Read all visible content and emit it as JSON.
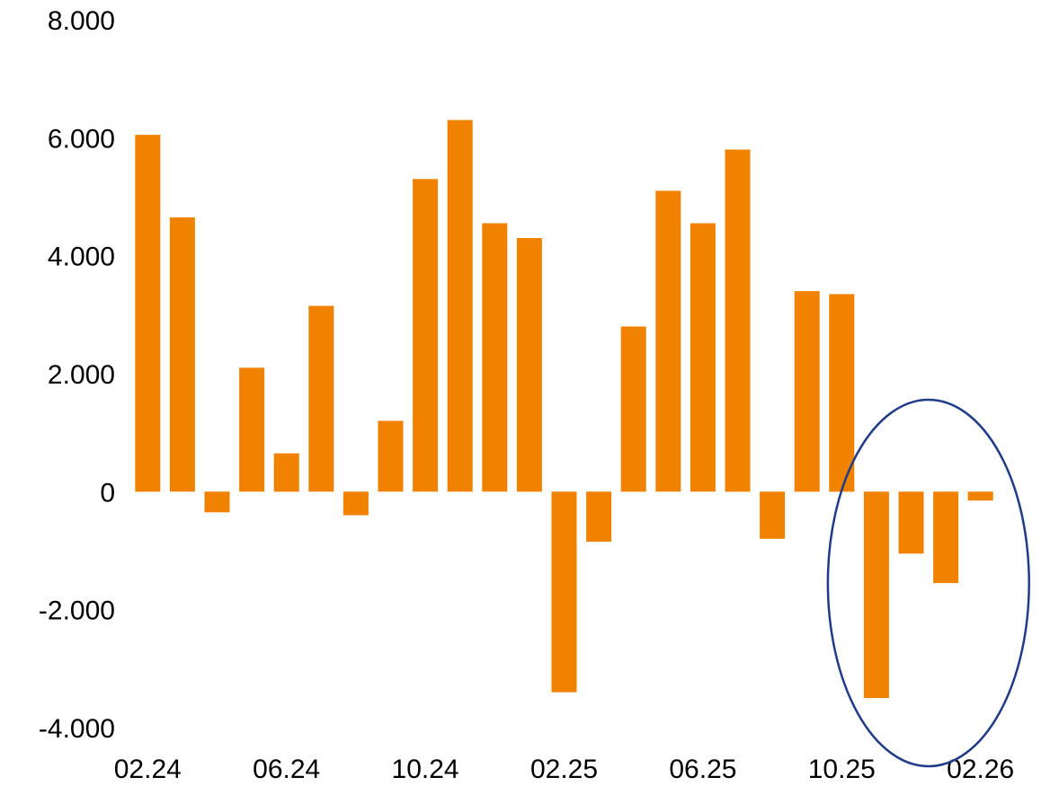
{
  "chart_data": {
    "type": "bar",
    "x": [
      "02.24",
      "03.24",
      "04.24",
      "05.24",
      "06.24",
      "07.24",
      "08.24",
      "09.24",
      "10.24",
      "11.24",
      "12.24",
      "01.25",
      "02.25",
      "03.25",
      "04.25",
      "05.25",
      "06.25",
      "07.25",
      "08.25",
      "09.25",
      "10.25",
      "11.25",
      "12.25",
      "01.26",
      "02.26"
    ],
    "values": [
      6050,
      4650,
      -350,
      2100,
      650,
      3150,
      -400,
      1200,
      5300,
      6300,
      4550,
      4300,
      -3400,
      -850,
      2800,
      5100,
      4550,
      5800,
      -800,
      3400,
      3350,
      -3500,
      -1050,
      -1550,
      -150
    ],
    "xticks": [
      "02.24",
      "06.24",
      "10.24",
      "02.25",
      "06.25",
      "10.25",
      "02.26"
    ],
    "yticks": [
      "8.000",
      "6.000",
      "4.000",
      "2.000",
      "0",
      "-2.000",
      "-4.000"
    ],
    "ylim": [
      -4000,
      8000
    ],
    "grid": false,
    "legend": "none",
    "title": "",
    "xlabel": "",
    "ylabel": "",
    "bar_color": "#f08200",
    "annotation": {
      "shape": "ellipse",
      "color": "#1f3c88",
      "highlights": [
        "11.25",
        "12.25",
        "01.26",
        "02.26"
      ]
    }
  }
}
